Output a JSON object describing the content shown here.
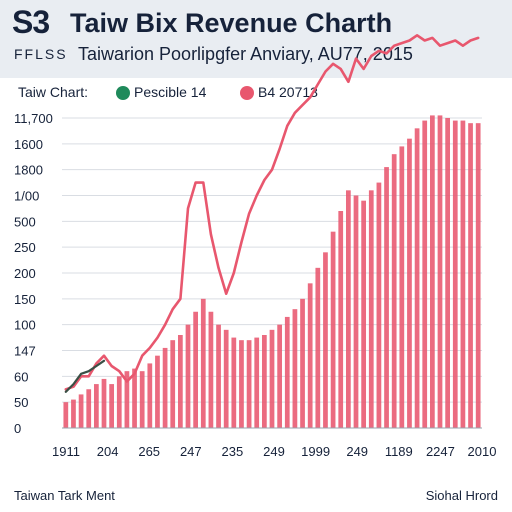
{
  "header": {
    "logo": "S3",
    "title": "Taiw Bix Revenue Charth",
    "tag": "FFLSS",
    "subtitle": "Taiwarion Poorlipgfer Anviary, AU77, 2015"
  },
  "legend": {
    "label": "Taiw Chart:",
    "items": [
      {
        "label": "Pescible 14",
        "color": "#1f8a5b"
      },
      {
        "label": "B4 20713",
        "color": "#e8576e"
      }
    ]
  },
  "footer": {
    "left": "Taiwan Tark Ment",
    "right": "Siohal Hrord"
  },
  "chart_data": {
    "type": "bar",
    "y_tick_labels": [
      "0",
      "50",
      "60",
      "147",
      "100",
      "150",
      "200",
      "250",
      "500",
      "1/00",
      "1800",
      "1600",
      "11,700"
    ],
    "x_tick_labels": [
      "1911",
      "204",
      "265",
      "247",
      "235",
      "249",
      "1999",
      "249",
      "1189",
      "2247",
      "2010"
    ],
    "bar_values": [
      1.0,
      1.1,
      1.3,
      1.5,
      1.7,
      1.9,
      1.7,
      2.0,
      2.2,
      2.3,
      2.2,
      2.5,
      2.8,
      3.1,
      3.4,
      3.6,
      4.0,
      4.5,
      5.0,
      4.5,
      4.0,
      3.8,
      3.5,
      3.4,
      3.4,
      3.5,
      3.6,
      3.8,
      4.0,
      4.3,
      4.6,
      5.0,
      5.6,
      6.2,
      6.8,
      7.6,
      8.4,
      9.2,
      9.0,
      8.8,
      9.2,
      9.5,
      10.1,
      10.6,
      10.9,
      11.2,
      11.6,
      11.9,
      12.1,
      12.1,
      12.0,
      11.9,
      11.9,
      11.8,
      11.8
    ],
    "series": [
      {
        "color": "#e8576e",
        "values": [
          1.5,
          1.6,
          2.0,
          2.0,
          2.5,
          2.8,
          2.4,
          2.2,
          1.8,
          2.1,
          2.8,
          3.1,
          3.5,
          4.0,
          4.6,
          5.0,
          8.5,
          9.5,
          9.5,
          7.5,
          6.2,
          5.2,
          6.0,
          7.2,
          8.3,
          9.0,
          9.6,
          10.0,
          10.8,
          11.7,
          12.2,
          12.5,
          12.8,
          13.3,
          13.8,
          14.1,
          13.9,
          13.4,
          14.3,
          13.9,
          14.4,
          14.6,
          14.5,
          14.8,
          14.9,
          15.0,
          15.2,
          15.0,
          15.1,
          14.8,
          14.9,
          15.0,
          14.8,
          15.0,
          15.1
        ]
      },
      {
        "color": "#3a4f45",
        "values": [
          1.4,
          1.7,
          2.1,
          2.2,
          2.4,
          2.6
        ]
      }
    ],
    "grid": true
  }
}
